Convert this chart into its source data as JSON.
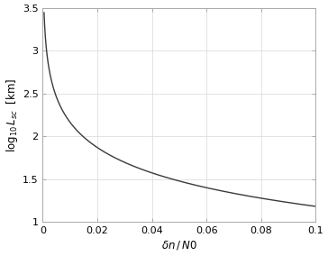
{
  "xlim": [
    0,
    0.1
  ],
  "ylim": [
    1.0,
    3.5
  ],
  "xticks": [
    0,
    0.02,
    0.04,
    0.06,
    0.08,
    0.1
  ],
  "yticks": [
    1.0,
    1.5,
    2.0,
    2.5,
    3.0,
    3.5
  ],
  "xlabel": "$\\delta n\\,/\\,N0$",
  "ylabel": "$\\log_{10} L_{sc}$  [km]",
  "line_color": "#3a3a3a",
  "line_width": 1.0,
  "background_color": "#ffffff",
  "ax_background_color": "#ffffff",
  "curve_x_start": 0.0005,
  "curve_x_end": 0.1,
  "curve_npoints": 2000,
  "curve_a": 0.195,
  "curve_b": 0.985,
  "grid_color": "#d8d8d8",
  "grid_linewidth": 0.5,
  "spine_color": "#aaaaaa",
  "tick_color": "#555555",
  "tick_labelsize": 8.0,
  "label_fontsize": 8.5
}
